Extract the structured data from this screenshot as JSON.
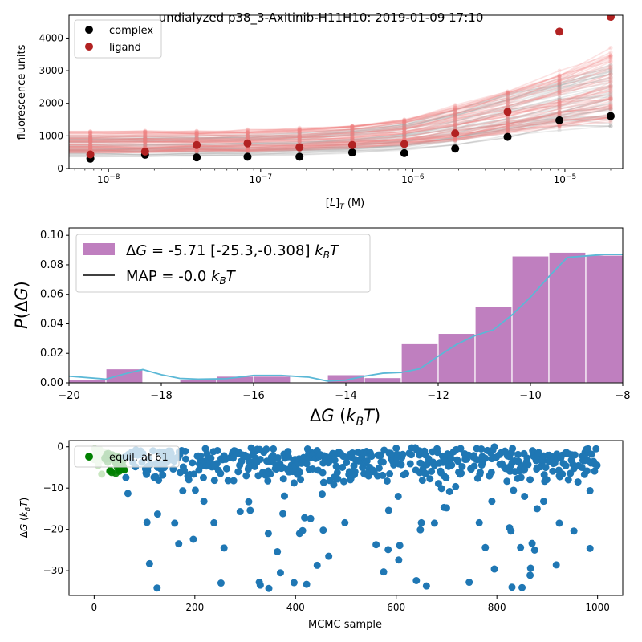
{
  "figure_title": "undialyzed p38_3-Axitinib-H11H10: 2019-01-09 17:10",
  "colors": {
    "complex": "#000000",
    "ligand": "#b22222",
    "complex_curves": "#9e9e9e",
    "ligand_curves": "#f08080",
    "histogram": "#bf7fbf",
    "density_line": "#5bb8d6",
    "trace": "#1f77b4",
    "equil": "#008000",
    "equil_pale": "#c8e6c0"
  },
  "chart_data": [
    {
      "type": "scatter",
      "title": "",
      "xlabel": "[L]_T (M)",
      "ylabel": "fluorescence units",
      "xscale": "log",
      "xlim": [
        5.5e-09,
        2.4e-05
      ],
      "ylim": [
        0,
        4700
      ],
      "xticks": [
        {
          "value": 1e-08,
          "base": "10",
          "exp": "−8"
        },
        {
          "value": 1e-07,
          "base": "10",
          "exp": "−7"
        },
        {
          "value": 1e-06,
          "base": "10",
          "exp": "−6"
        },
        {
          "value": 1e-05,
          "base": "10",
          "exp": "−5"
        }
      ],
      "yticks": [
        0,
        1000,
        2000,
        3000,
        4000
      ],
      "legend": {
        "placement": "top-left",
        "entries": [
          "complex",
          "ligand"
        ]
      },
      "x": [
        7.6e-09,
        1.74e-08,
        3.8e-08,
        8.2e-08,
        1.8e-07,
        4e-07,
        8.8e-07,
        1.9e-06,
        4.2e-06,
        9.2e-06,
        2e-05
      ],
      "series": [
        {
          "name": "complex",
          "values": [
            300,
            420,
            340,
            360,
            360,
            490,
            470,
            610,
            970,
            1480,
            1610
          ]
        },
        {
          "name": "ligand",
          "values": [
            430,
            520,
            720,
            770,
            650,
            720,
            750,
            1080,
            1740,
            4200,
            4650
          ]
        }
      ],
      "posterior_curve_envelope": {
        "complex": {
          "low": [
            360,
            370,
            380,
            400,
            420,
            470,
            560,
            720,
            950,
            1150,
            1300
          ],
          "high": [
            1000,
            1010,
            1020,
            1050,
            1100,
            1200,
            1400,
            1800,
            2300,
            2800,
            3200
          ]
        },
        "ligand": {
          "low": [
            480,
            490,
            500,
            520,
            560,
            620,
            700,
            850,
            1050,
            1250,
            1400
          ],
          "high": [
            1150,
            1160,
            1170,
            1200,
            1250,
            1350,
            1550,
            1950,
            2400,
            3000,
            3700
          ]
        }
      }
    },
    {
      "type": "bar",
      "title": "",
      "xlabel": "ΔG (k_BT)",
      "ylabel": "P(ΔG)",
      "xlim": [
        -20,
        -8
      ],
      "ylim": [
        0,
        0.105
      ],
      "xticks": [
        -20,
        -18,
        -16,
        -14,
        -12,
        -10,
        -8
      ],
      "yticks": [
        0.0,
        0.02,
        0.04,
        0.06,
        0.08,
        0.1
      ],
      "legend": {
        "placement": "top-left",
        "entries": [
          "ΔG =  -5.71 [-25.3,-0.308] k_BT",
          "MAP = -0.0 k_BT"
        ]
      },
      "bin_edges": [
        -20.0,
        -19.2,
        -18.4,
        -17.6,
        -16.8,
        -16.0,
        -15.2,
        -14.4,
        -13.6,
        -12.8,
        -12.0,
        -11.2,
        -10.4,
        -9.6,
        -8.8,
        -8.0
      ],
      "values": [
        0.002,
        0.0095,
        0.0,
        0.002,
        0.0045,
        0.0045,
        0.0,
        0.0055,
        0.0035,
        0.0265,
        0.0335,
        0.052,
        0.086,
        0.0885,
        0.0865
      ],
      "density_x": [
        -20,
        -19.2,
        -18.8,
        -18.4,
        -18.0,
        -17.6,
        -17.2,
        -16.6,
        -16.0,
        -15.4,
        -14.8,
        -14.4,
        -14.0,
        -13.6,
        -13.2,
        -12.8,
        -12.4,
        -12.0,
        -11.6,
        -11.2,
        -10.8,
        -10.4,
        -10.0,
        -9.6,
        -9.2,
        -8.8,
        -8.4,
        -8.0
      ],
      "density_y": [
        0.0045,
        0.0025,
        0.006,
        0.009,
        0.0055,
        0.003,
        0.0025,
        0.0028,
        0.005,
        0.005,
        0.0038,
        0.0012,
        0.0018,
        0.0045,
        0.0065,
        0.007,
        0.0095,
        0.018,
        0.026,
        0.032,
        0.036,
        0.046,
        0.058,
        0.072,
        0.085,
        0.086,
        0.087,
        0.087
      ]
    },
    {
      "type": "scatter",
      "title": "",
      "xlabel": "MCMC sample",
      "ylabel": "ΔG (k_BT)",
      "xlim": [
        -50,
        1050
      ],
      "ylim": [
        -36,
        1.5
      ],
      "xticks": [
        0,
        200,
        400,
        600,
        800,
        1000
      ],
      "yticks": [
        0,
        -10,
        -20,
        -30
      ],
      "legend": {
        "placement": "top-left",
        "entries": [
          "equil. at 61"
        ]
      },
      "n_samples": 1000,
      "equilibration_sample": 61,
      "outliers": [
        {
          "x": 67,
          "y": -11.3
        },
        {
          "x": 105,
          "y": -18.3
        },
        {
          "x": 110,
          "y": -28.3
        },
        {
          "x": 125,
          "y": -34.2
        },
        {
          "x": 126,
          "y": -16.3
        },
        {
          "x": 160,
          "y": -18.5
        },
        {
          "x": 168,
          "y": -23.5
        },
        {
          "x": 197,
          "y": -22.4
        },
        {
          "x": 218,
          "y": -13.2
        },
        {
          "x": 238,
          "y": -18.4
        },
        {
          "x": 252,
          "y": -33.0
        },
        {
          "x": 258,
          "y": -24.5
        },
        {
          "x": 290,
          "y": -15.7
        },
        {
          "x": 307,
          "y": -13.3
        },
        {
          "x": 310,
          "y": -15.4
        },
        {
          "x": 328,
          "y": -32.8
        },
        {
          "x": 330,
          "y": -33.5
        },
        {
          "x": 347,
          "y": -34.3
        },
        {
          "x": 346,
          "y": -21.0
        },
        {
          "x": 364,
          "y": -25.4
        },
        {
          "x": 370,
          "y": -30.5
        },
        {
          "x": 375,
          "y": -16.2
        },
        {
          "x": 397,
          "y": -32.9
        },
        {
          "x": 408,
          "y": -21.0
        },
        {
          "x": 414,
          "y": -20.3
        },
        {
          "x": 418,
          "y": -17.2
        },
        {
          "x": 422,
          "y": -33.3
        },
        {
          "x": 430,
          "y": -17.4
        },
        {
          "x": 443,
          "y": -28.7
        },
        {
          "x": 455,
          "y": -20.2
        },
        {
          "x": 466,
          "y": -26.5
        },
        {
          "x": 498,
          "y": -18.4
        },
        {
          "x": 560,
          "y": -23.7
        },
        {
          "x": 575,
          "y": -30.3
        },
        {
          "x": 584,
          "y": -24.9
        },
        {
          "x": 585,
          "y": -15.4
        },
        {
          "x": 605,
          "y": -27.4
        },
        {
          "x": 607,
          "y": -23.9
        },
        {
          "x": 640,
          "y": -32.4
        },
        {
          "x": 648,
          "y": -20.1
        },
        {
          "x": 650,
          "y": -18.4
        },
        {
          "x": 660,
          "y": -33.7
        },
        {
          "x": 676,
          "y": -18.5
        },
        {
          "x": 695,
          "y": -14.7
        },
        {
          "x": 700,
          "y": -14.8
        },
        {
          "x": 745,
          "y": -32.8
        },
        {
          "x": 765,
          "y": -18.4
        },
        {
          "x": 777,
          "y": -24.4
        },
        {
          "x": 790,
          "y": -13.2
        },
        {
          "x": 795,
          "y": -29.6
        },
        {
          "x": 825,
          "y": -19.6
        },
        {
          "x": 828,
          "y": -20.4
        },
        {
          "x": 830,
          "y": -34.0
        },
        {
          "x": 847,
          "y": -24.4
        },
        {
          "x": 850,
          "y": -34.1
        },
        {
          "x": 855,
          "y": -12.0
        },
        {
          "x": 866,
          "y": -31.1
        },
        {
          "x": 867,
          "y": -29.4
        },
        {
          "x": 870,
          "y": -23.4
        },
        {
          "x": 875,
          "y": -25.0
        },
        {
          "x": 880,
          "y": -15.0
        },
        {
          "x": 893,
          "y": -13.2
        },
        {
          "x": 918,
          "y": -28.6
        },
        {
          "x": 924,
          "y": -18.5
        },
        {
          "x": 953,
          "y": -20.4
        },
        {
          "x": 985,
          "y": -24.6
        }
      ]
    }
  ]
}
